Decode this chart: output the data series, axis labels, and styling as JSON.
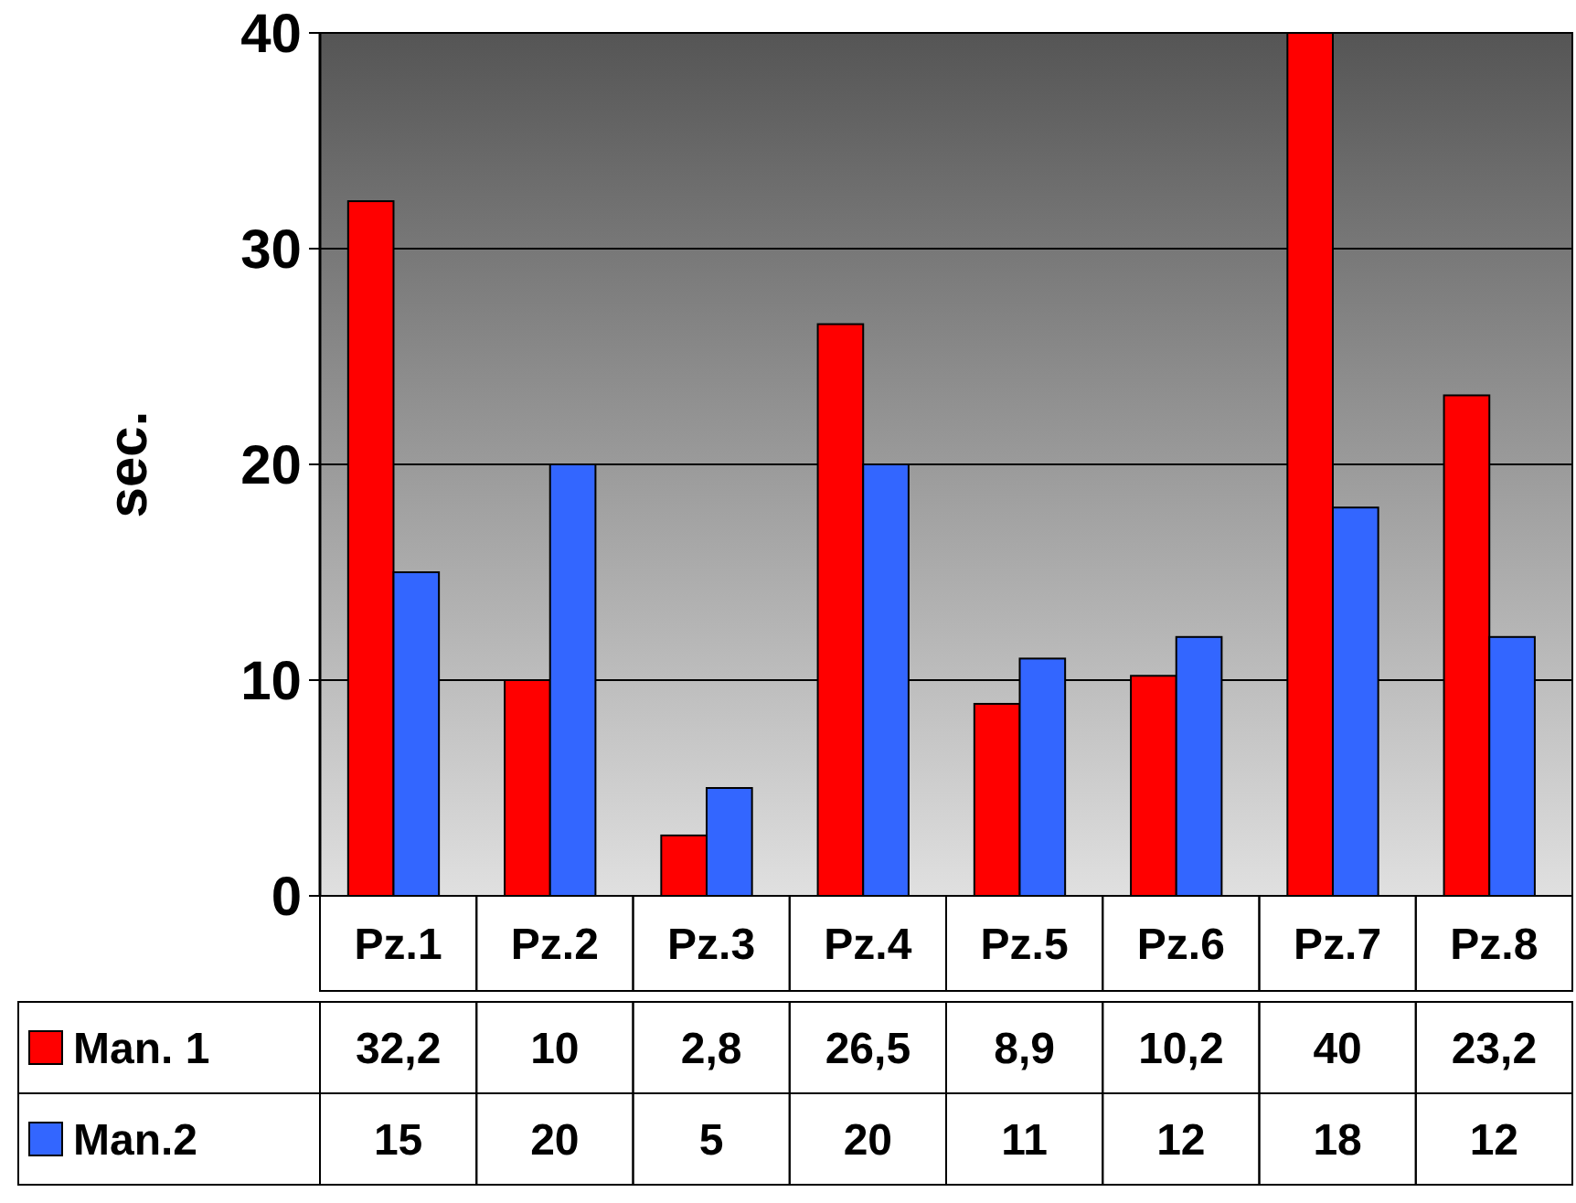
{
  "chart_data": {
    "type": "bar",
    "ylabel": "sec.",
    "categories": [
      "Pz.1",
      "Pz.2",
      "Pz.3",
      "Pz.4",
      "Pz.5",
      "Pz.6",
      "Pz.7",
      "Pz.8"
    ],
    "series": [
      {
        "name": "Man. 1",
        "color": "#ff0000",
        "values": [
          32.2,
          10,
          2.8,
          26.5,
          8.9,
          10.2,
          40,
          23.2
        ],
        "value_labels": [
          "32,2",
          "10",
          "2,8",
          "26,5",
          "8,9",
          "10,2",
          "40",
          "23,2"
        ]
      },
      {
        "name": "Man.2",
        "color": "#3366ff",
        "values": [
          15,
          20,
          5,
          20,
          11,
          12,
          18,
          12
        ],
        "value_labels": [
          "15",
          "20",
          "5",
          "20",
          "11",
          "12",
          "18",
          "12"
        ]
      }
    ],
    "ylim": [
      0,
      40
    ],
    "yticks": [
      0,
      10,
      20,
      30,
      40
    ],
    "grid": "y",
    "legend": "bottom"
  }
}
